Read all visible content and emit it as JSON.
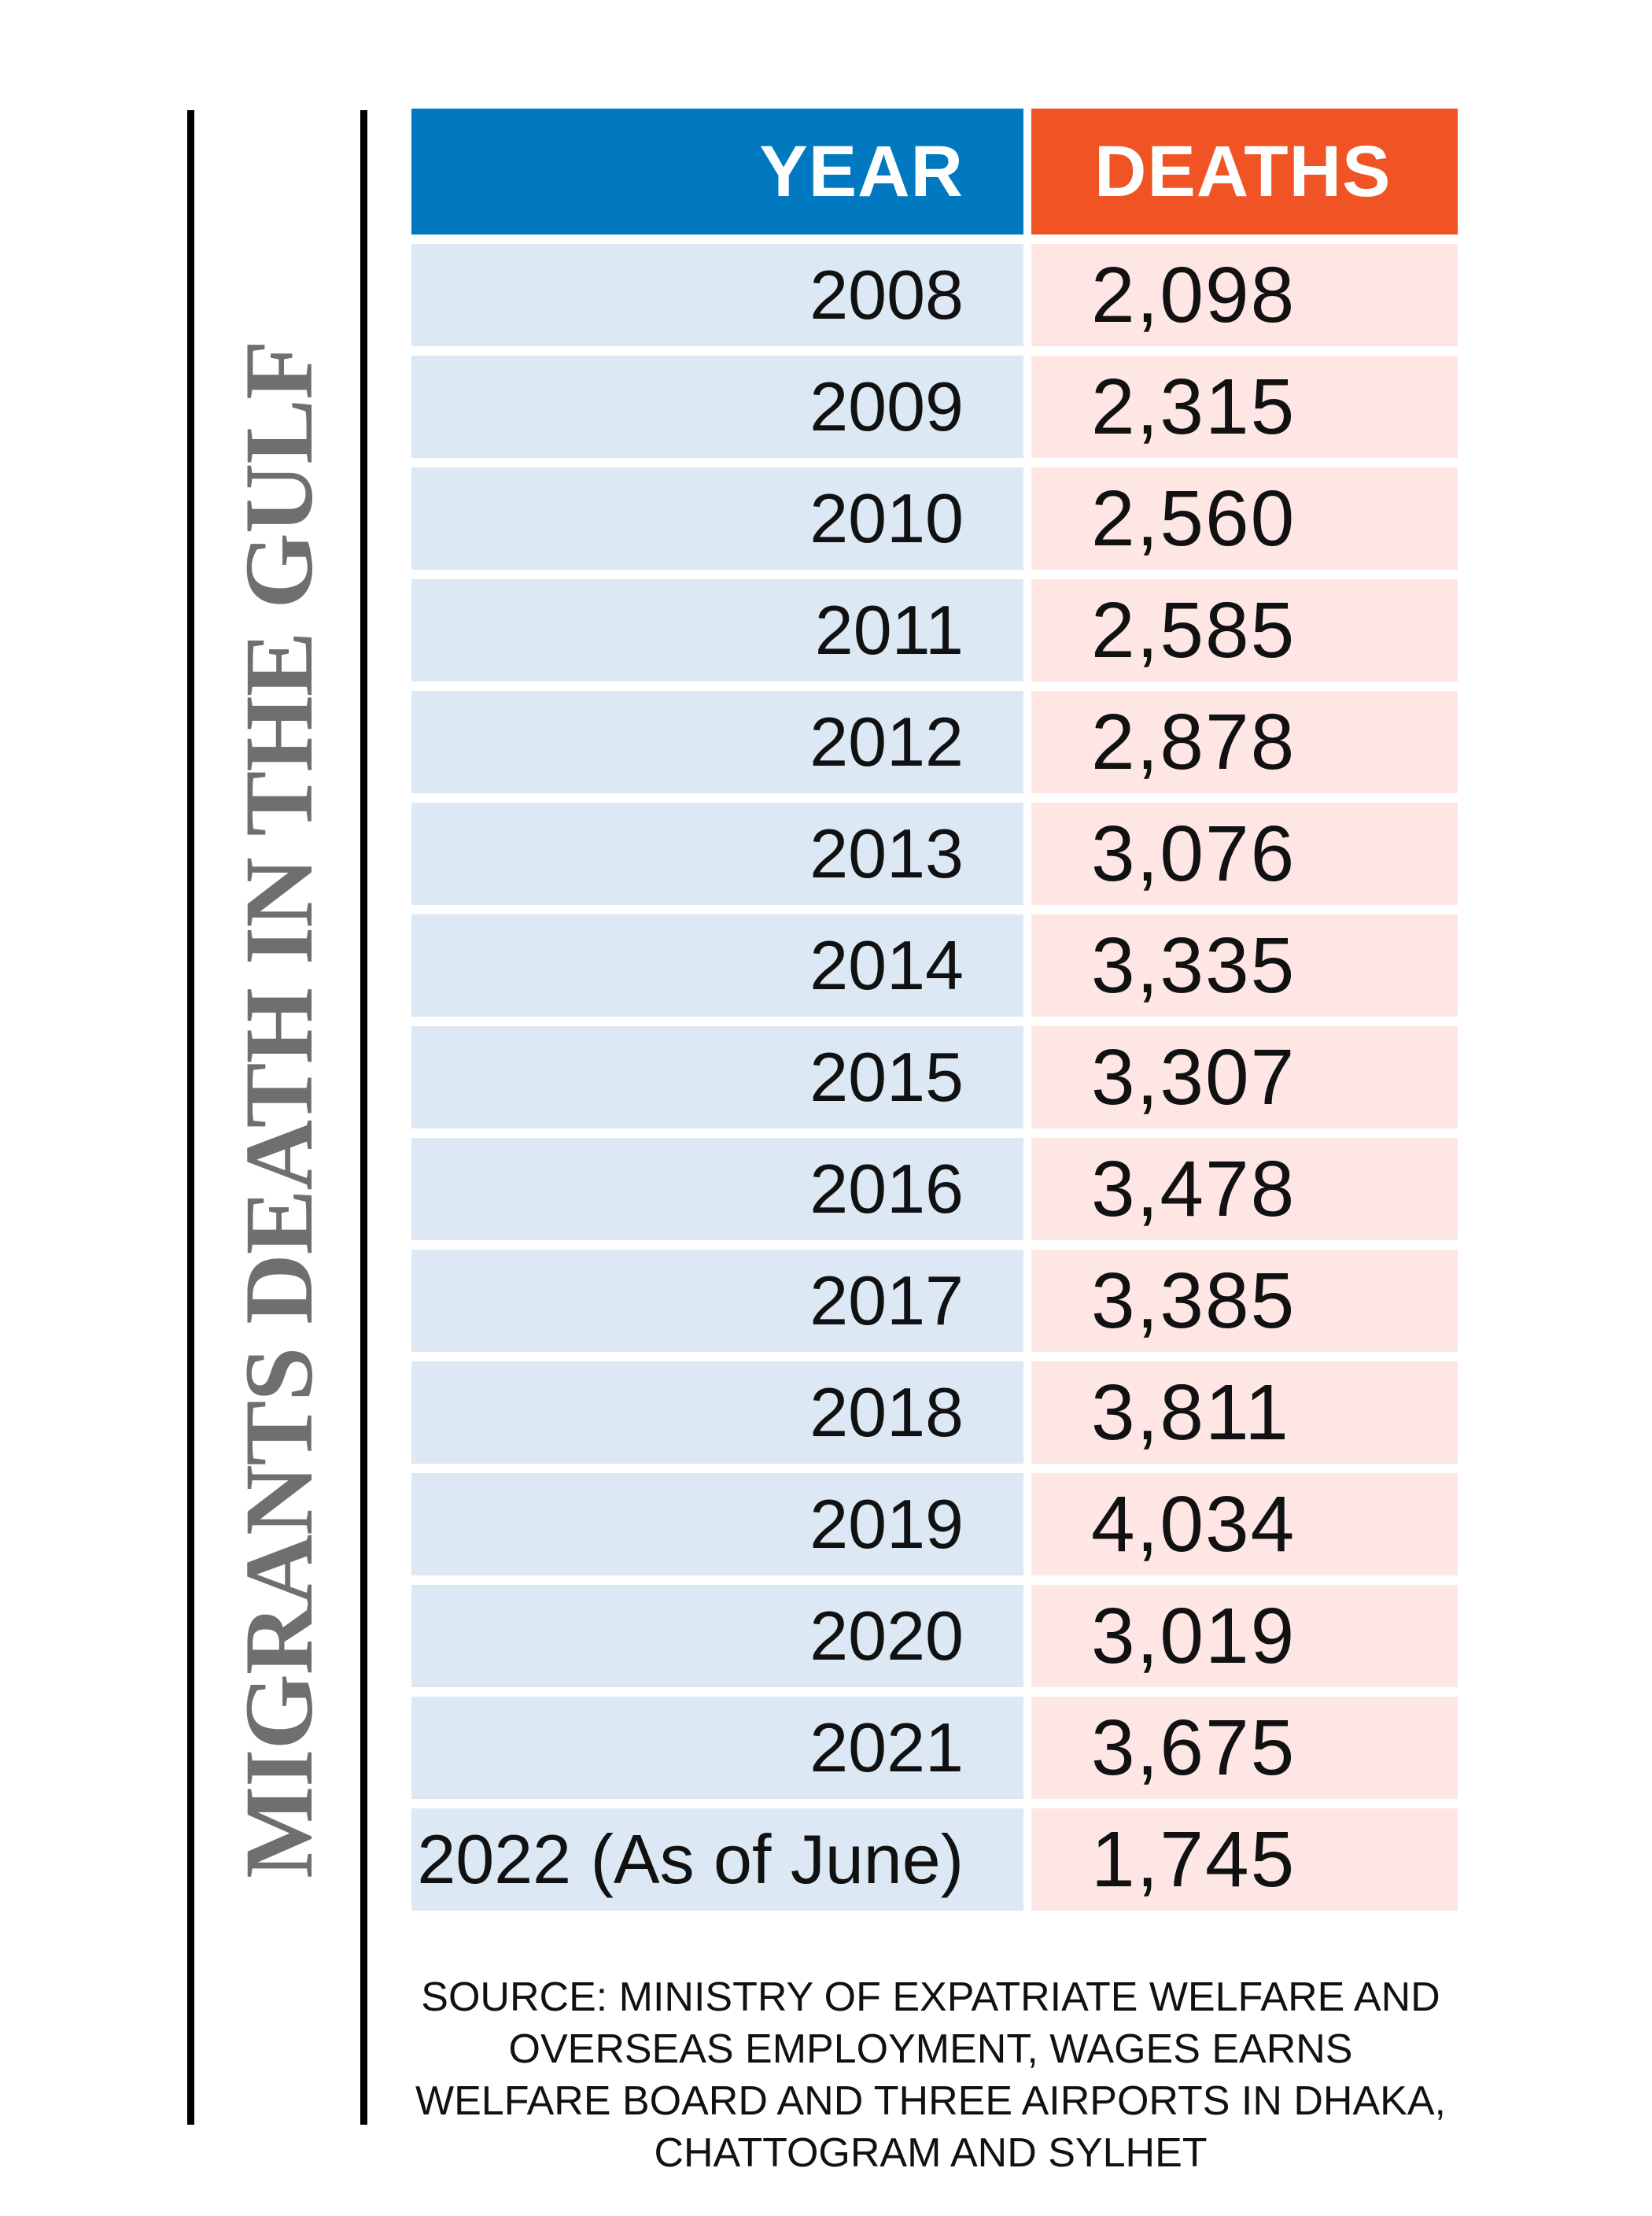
{
  "chart_data": {
    "type": "table",
    "title": "MIGRANTS DEATH IN THE GULF",
    "columns": [
      "YEAR",
      "DEATHS"
    ],
    "rows": [
      {
        "year": "2008",
        "deaths": "2,098"
      },
      {
        "year": "2009",
        "deaths": "2,315"
      },
      {
        "year": "2010",
        "deaths": "2,560"
      },
      {
        "year": "2011",
        "deaths": "2,585"
      },
      {
        "year": "2012",
        "deaths": "2,878"
      },
      {
        "year": "2013",
        "deaths": "3,076"
      },
      {
        "year": "2014",
        "deaths": "3,335"
      },
      {
        "year": "2015",
        "deaths": "3,307"
      },
      {
        "year": "2016",
        "deaths": "3,478"
      },
      {
        "year": "2017",
        "deaths": "3,385"
      },
      {
        "year": "2018",
        "deaths": "3,811"
      },
      {
        "year": "2019",
        "deaths": "4,034"
      },
      {
        "year": "2020",
        "deaths": "3,019"
      },
      {
        "year": "2021",
        "deaths": "3,675"
      },
      {
        "year": "2022 (As of June)",
        "deaths": "1,745"
      }
    ],
    "source": "SOURCE: MINISTRY OF EXPATRIATE WELFARE AND OVERSEAS EMPLOYMENT, WAGES EARNS WELFARE BOARD AND THREE AIRPORTS IN DHAKA, CHATTOGRAM AND SYLHET"
  },
  "colors": {
    "year_header": "#0079c1",
    "deaths_header": "#f05324",
    "year_cell": "#dde8f5",
    "deaths_cell": "#fde6e4",
    "title_text": "#6e6f71"
  }
}
